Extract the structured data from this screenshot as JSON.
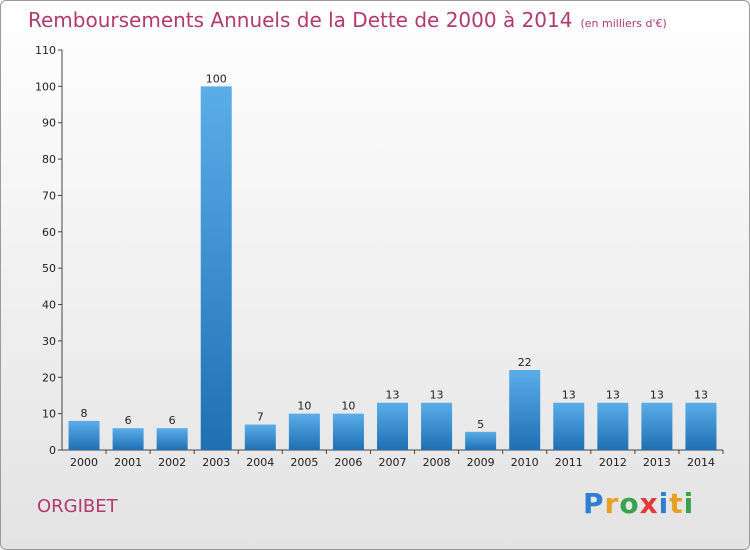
{
  "chart_data": {
    "type": "bar",
    "title": "Remboursements Annuels de la Dette de 2000 à 2014",
    "subtitle": "(en milliers d'€)",
    "xlabel": "",
    "ylabel": "",
    "ylim": [
      0,
      110
    ],
    "yticks": [
      0,
      10,
      20,
      30,
      40,
      50,
      60,
      70,
      80,
      90,
      100,
      110
    ],
    "grid": false,
    "categories": [
      "2000",
      "2001",
      "2002",
      "2003",
      "2004",
      "2005",
      "2006",
      "2007",
      "2008",
      "2009",
      "2010",
      "2011",
      "2012",
      "2013",
      "2014"
    ],
    "values": [
      8,
      6,
      6,
      100,
      7,
      10,
      10,
      13,
      13,
      5,
      22,
      13,
      13,
      13,
      13
    ],
    "bar_color": "#2e86cc"
  },
  "footer": {
    "town": "ORGIBET",
    "logo_letters": [
      "P",
      "r",
      "o",
      "x",
      "i",
      "t",
      "i"
    ]
  }
}
